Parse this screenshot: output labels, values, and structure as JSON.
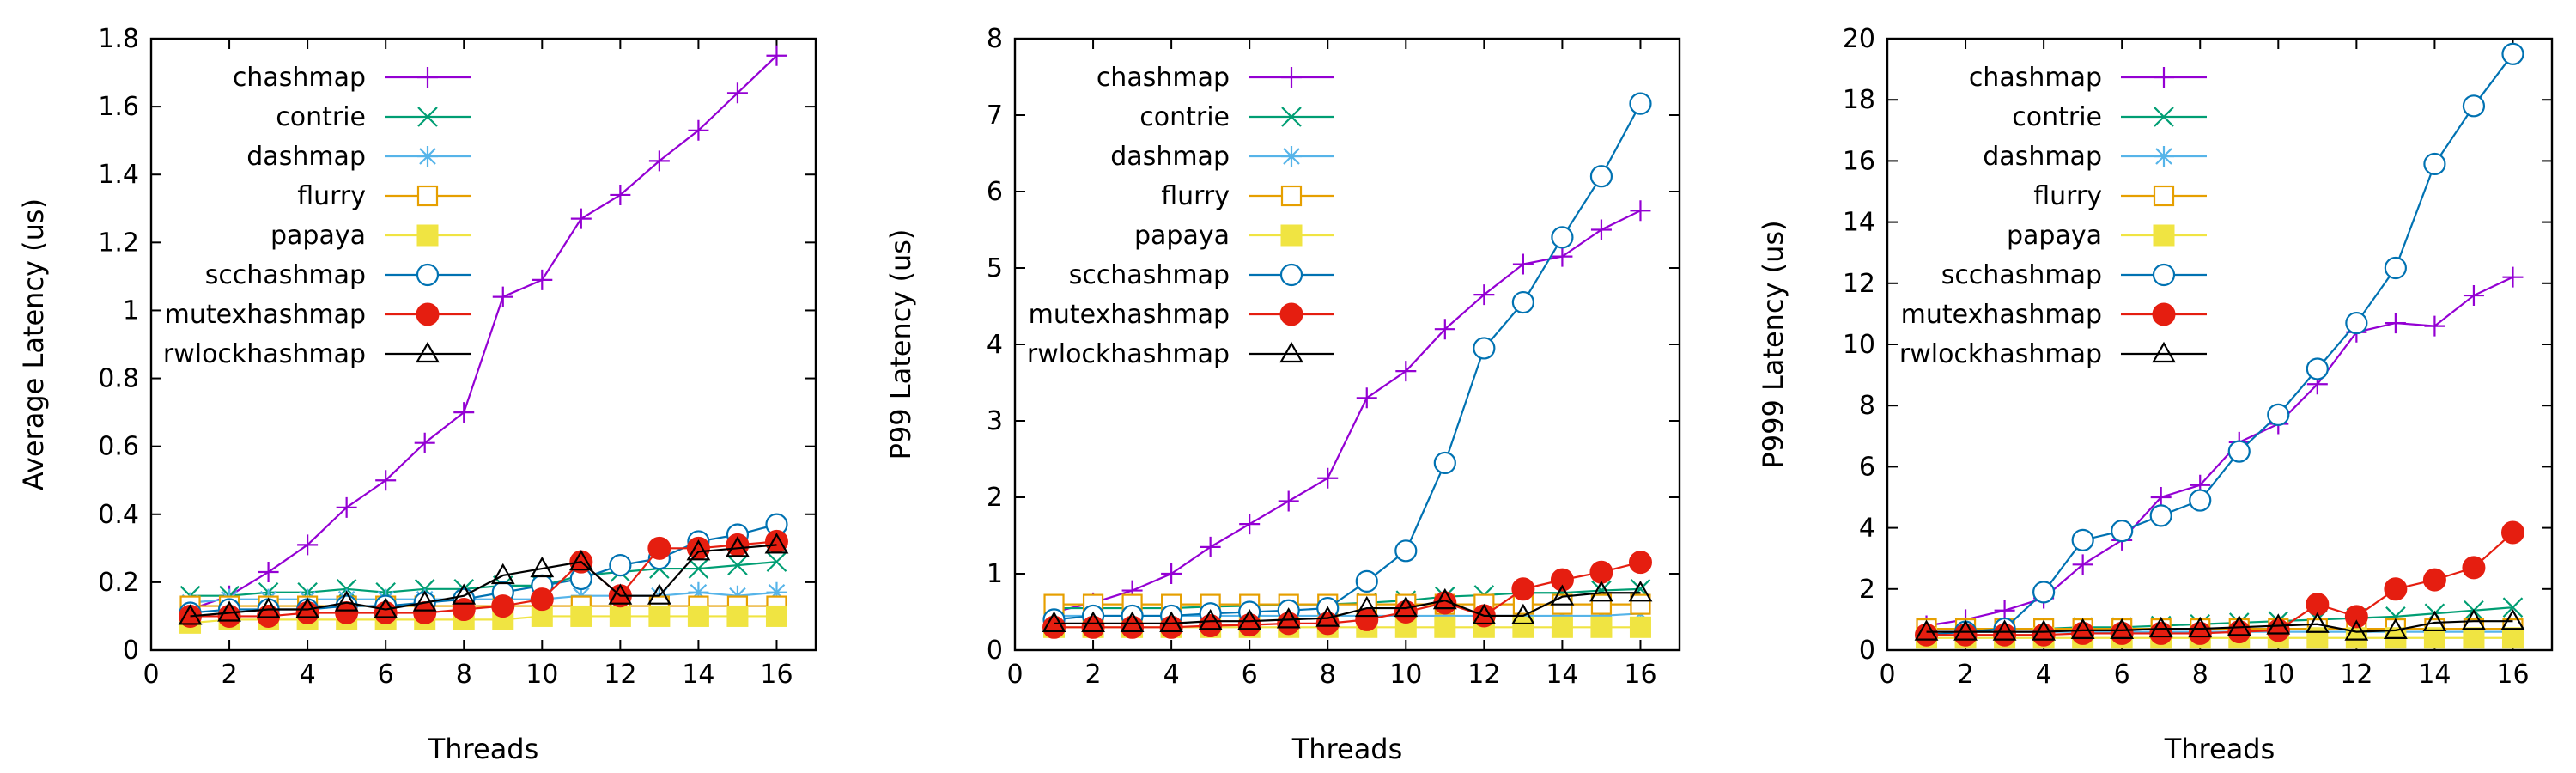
{
  "series_styles": [
    {
      "name": "chashmap",
      "color": "#9400d3",
      "marker": "plus"
    },
    {
      "name": "contrie",
      "color": "#009e73",
      "marker": "cross"
    },
    {
      "name": "dashmap",
      "color": "#56b4e9",
      "marker": "star"
    },
    {
      "name": "flurry",
      "color": "#e69f00",
      "marker": "open-square"
    },
    {
      "name": "papaya",
      "color": "#f0e442",
      "marker": "filled-square"
    },
    {
      "name": "scchashmap",
      "color": "#0072b2",
      "marker": "open-circle"
    },
    {
      "name": "mutexhashmap",
      "color": "#e51e10",
      "marker": "filled-circle"
    },
    {
      "name": "rwlockhashmap",
      "color": "#000000",
      "marker": "open-triangle"
    }
  ],
  "chart_data": [
    {
      "type": "line",
      "xlabel": "Threads",
      "ylabel": "Average Latency (us)",
      "xlim": [
        0,
        17
      ],
      "ylim": [
        0,
        1.8
      ],
      "xticks": [
        0,
        2,
        4,
        6,
        8,
        10,
        12,
        14,
        16
      ],
      "yticks": [
        0,
        0.2,
        0.4,
        0.6,
        0.8,
        1,
        1.2,
        1.4,
        1.6,
        1.8
      ],
      "grid": false,
      "legend_position": "top-left",
      "x": [
        1,
        2,
        3,
        4,
        5,
        6,
        7,
        8,
        9,
        10,
        11,
        12,
        13,
        14,
        15,
        16
      ],
      "series": [
        {
          "name": "chashmap",
          "values": [
            0.12,
            0.16,
            0.23,
            0.31,
            0.42,
            0.5,
            0.61,
            0.7,
            1.04,
            1.09,
            1.27,
            1.34,
            1.44,
            1.53,
            1.64,
            1.75
          ]
        },
        {
          "name": "contrie",
          "values": [
            0.16,
            0.16,
            0.17,
            0.17,
            0.18,
            0.17,
            0.18,
            0.18,
            0.19,
            0.19,
            0.22,
            0.23,
            0.24,
            0.24,
            0.25,
            0.26
          ]
        },
        {
          "name": "dashmap",
          "values": [
            0.14,
            0.15,
            0.15,
            0.15,
            0.15,
            0.15,
            0.15,
            0.15,
            0.15,
            0.15,
            0.16,
            0.16,
            0.16,
            0.17,
            0.16,
            0.17
          ]
        },
        {
          "name": "flurry",
          "values": [
            0.13,
            0.13,
            0.13,
            0.13,
            0.13,
            0.13,
            0.13,
            0.13,
            0.13,
            0.13,
            0.13,
            0.13,
            0.13,
            0.13,
            0.13,
            0.13
          ]
        },
        {
          "name": "papaya",
          "values": [
            0.08,
            0.09,
            0.09,
            0.09,
            0.09,
            0.09,
            0.09,
            0.09,
            0.09,
            0.1,
            0.1,
            0.1,
            0.1,
            0.1,
            0.1,
            0.1
          ]
        },
        {
          "name": "scchashmap",
          "values": [
            0.11,
            0.12,
            0.12,
            0.12,
            0.13,
            0.13,
            0.14,
            0.15,
            0.17,
            0.19,
            0.21,
            0.25,
            0.27,
            0.32,
            0.34,
            0.37
          ]
        },
        {
          "name": "mutexhashmap",
          "values": [
            0.1,
            0.1,
            0.1,
            0.11,
            0.11,
            0.11,
            0.11,
            0.12,
            0.13,
            0.15,
            0.26,
            0.16,
            0.3,
            0.3,
            0.31,
            0.32
          ]
        },
        {
          "name": "rwlockhashmap",
          "values": [
            0.1,
            0.11,
            0.12,
            0.12,
            0.14,
            0.12,
            0.14,
            0.16,
            0.22,
            0.24,
            0.26,
            0.16,
            0.16,
            0.29,
            0.3,
            0.31
          ]
        }
      ]
    },
    {
      "type": "line",
      "xlabel": "Threads",
      "ylabel": "P99 Latency (us)",
      "xlim": [
        0,
        17
      ],
      "ylim": [
        0,
        8
      ],
      "xticks": [
        0,
        2,
        4,
        6,
        8,
        10,
        12,
        14,
        16
      ],
      "yticks": [
        0,
        1,
        2,
        3,
        4,
        5,
        6,
        7,
        8
      ],
      "grid": false,
      "legend_position": "top-left",
      "x": [
        1,
        2,
        3,
        4,
        5,
        6,
        7,
        8,
        9,
        10,
        11,
        12,
        13,
        14,
        15,
        16
      ],
      "series": [
        {
          "name": "chashmap",
          "values": [
            0.5,
            0.62,
            0.78,
            1.0,
            1.35,
            1.65,
            1.95,
            2.25,
            3.3,
            3.65,
            4.2,
            4.65,
            5.05,
            5.15,
            5.5,
            5.75
          ]
        },
        {
          "name": "contrie",
          "values": [
            0.55,
            0.55,
            0.55,
            0.55,
            0.57,
            0.58,
            0.6,
            0.6,
            0.62,
            0.65,
            0.7,
            0.72,
            0.75,
            0.75,
            0.78,
            0.8
          ]
        },
        {
          "name": "dashmap",
          "values": [
            0.45,
            0.45,
            0.45,
            0.45,
            0.45,
            0.45,
            0.45,
            0.45,
            0.45,
            0.45,
            0.45,
            0.45,
            0.45,
            0.45,
            0.45,
            0.48
          ]
        },
        {
          "name": "flurry",
          "values": [
            0.6,
            0.6,
            0.6,
            0.6,
            0.6,
            0.6,
            0.6,
            0.6,
            0.6,
            0.6,
            0.6,
            0.6,
            0.6,
            0.6,
            0.6,
            0.6
          ]
        },
        {
          "name": "papaya",
          "values": [
            0.3,
            0.3,
            0.3,
            0.3,
            0.3,
            0.3,
            0.3,
            0.3,
            0.3,
            0.3,
            0.3,
            0.3,
            0.3,
            0.3,
            0.3,
            0.3
          ]
        },
        {
          "name": "scchashmap",
          "values": [
            0.4,
            0.45,
            0.45,
            0.45,
            0.48,
            0.5,
            0.52,
            0.55,
            0.9,
            1.3,
            2.45,
            3.95,
            4.55,
            5.4,
            6.2,
            7.15
          ]
        },
        {
          "name": "mutexhashmap",
          "values": [
            0.3,
            0.3,
            0.3,
            0.3,
            0.32,
            0.33,
            0.35,
            0.35,
            0.4,
            0.5,
            0.62,
            0.45,
            0.8,
            0.92,
            1.02,
            1.15
          ]
        },
        {
          "name": "rwlockhashmap",
          "values": [
            0.35,
            0.35,
            0.35,
            0.35,
            0.38,
            0.38,
            0.4,
            0.42,
            0.55,
            0.55,
            0.65,
            0.45,
            0.45,
            0.7,
            0.75,
            0.75
          ]
        }
      ]
    },
    {
      "type": "line",
      "xlabel": "Threads",
      "ylabel": "P999 Latency (us)",
      "xlim": [
        0,
        17
      ],
      "ylim": [
        0,
        20
      ],
      "xticks": [
        0,
        2,
        4,
        6,
        8,
        10,
        12,
        14,
        16
      ],
      "yticks": [
        0,
        2,
        4,
        6,
        8,
        10,
        12,
        14,
        16,
        18,
        20
      ],
      "grid": false,
      "legend_position": "top-left",
      "x": [
        1,
        2,
        3,
        4,
        5,
        6,
        7,
        8,
        9,
        10,
        11,
        12,
        13,
        14,
        15,
        16
      ],
      "series": [
        {
          "name": "chashmap",
          "values": [
            0.8,
            1.0,
            1.3,
            1.7,
            2.8,
            3.6,
            5.0,
            5.4,
            6.8,
            7.4,
            8.7,
            10.4,
            10.7,
            10.6,
            11.6,
            12.2
          ]
        },
        {
          "name": "contrie",
          "values": [
            0.7,
            0.7,
            0.7,
            0.7,
            0.75,
            0.75,
            0.8,
            0.85,
            0.9,
            0.95,
            1.0,
            1.05,
            1.1,
            1.2,
            1.3,
            1.4
          ]
        },
        {
          "name": "dashmap",
          "values": [
            0.6,
            0.6,
            0.6,
            0.6,
            0.6,
            0.6,
            0.6,
            0.6,
            0.6,
            0.6,
            0.6,
            0.6,
            0.6,
            0.6,
            0.6,
            0.6
          ]
        },
        {
          "name": "flurry",
          "values": [
            0.7,
            0.7,
            0.7,
            0.7,
            0.7,
            0.7,
            0.7,
            0.7,
            0.7,
            0.7,
            0.7,
            0.7,
            0.7,
            0.7,
            0.7,
            0.7
          ]
        },
        {
          "name": "papaya",
          "values": [
            0.4,
            0.4,
            0.4,
            0.4,
            0.4,
            0.4,
            0.4,
            0.4,
            0.4,
            0.4,
            0.4,
            0.4,
            0.4,
            0.4,
            0.4,
            0.4
          ]
        },
        {
          "name": "scchashmap",
          "values": [
            0.5,
            0.6,
            0.7,
            1.9,
            3.6,
            3.9,
            4.4,
            4.9,
            6.5,
            7.7,
            9.2,
            10.7,
            12.5,
            15.9,
            17.8,
            19.5
          ]
        },
        {
          "name": "mutexhashmap",
          "values": [
            0.5,
            0.5,
            0.5,
            0.5,
            0.55,
            0.55,
            0.55,
            0.55,
            0.6,
            0.65,
            1.5,
            1.1,
            2.0,
            2.3,
            2.7,
            3.85
          ]
        },
        {
          "name": "rwlockhashmap",
          "values": [
            0.6,
            0.6,
            0.6,
            0.6,
            0.65,
            0.65,
            0.7,
            0.7,
            0.75,
            0.8,
            0.85,
            0.6,
            0.65,
            0.9,
            0.95,
            0.95
          ]
        }
      ]
    }
  ]
}
